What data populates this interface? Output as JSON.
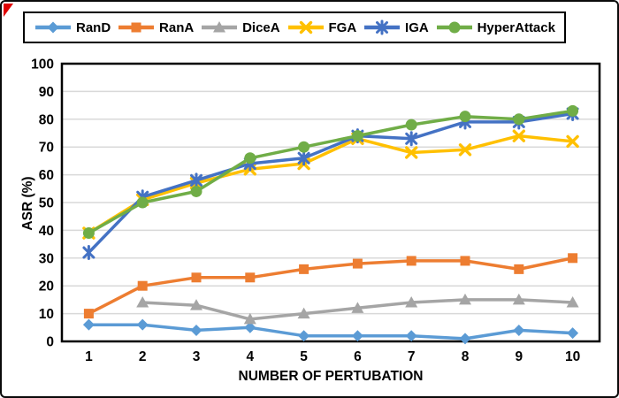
{
  "figure": {
    "corner_marker_color": "#e00000",
    "background_color": "#ffffff",
    "plot_border_color": "#000000",
    "gridline_color": "#d9d9d9"
  },
  "chart_data": {
    "type": "line",
    "title": "",
    "xlabel": "NUMBER OF PERTUBATION",
    "ylabel": "ASR (%)",
    "x_categories": [
      "1",
      "2",
      "3",
      "4",
      "5",
      "6",
      "7",
      "8",
      "9",
      "10"
    ],
    "ylim": [
      0,
      100
    ],
    "ytick_step": 10,
    "ytick_labels": [
      "0",
      "10",
      "20",
      "30",
      "40",
      "50",
      "60",
      "70",
      "80",
      "90",
      "100"
    ],
    "grid": "horizontal",
    "legend_position": "top",
    "series": [
      {
        "name": "RanD",
        "color": "#5b9bd5",
        "marker": "diamond",
        "values": [
          6,
          6,
          4,
          5,
          2,
          2,
          2,
          1,
          4,
          3
        ]
      },
      {
        "name": "RanA",
        "color": "#ed7d31",
        "marker": "square",
        "values": [
          10,
          20,
          23,
          23,
          26,
          28,
          29,
          29,
          26,
          30
        ]
      },
      {
        "name": "DiceA",
        "color": "#a5a5a5",
        "marker": "triangle",
        "values": [
          null,
          14,
          13,
          8,
          10,
          12,
          14,
          15,
          15,
          14
        ]
      },
      {
        "name": "FGA",
        "color": "#ffc000",
        "marker": "x",
        "values": [
          39,
          51,
          57,
          62,
          64,
          73,
          68,
          69,
          74,
          72
        ]
      },
      {
        "name": "IGA",
        "color": "#4472c4",
        "marker": "asterisk",
        "values": [
          32,
          52,
          58,
          64,
          66,
          74,
          73,
          79,
          79,
          82
        ]
      },
      {
        "name": "HyperAttack",
        "color": "#70ad47",
        "marker": "circle",
        "values": [
          39,
          50,
          54,
          66,
          70,
          74,
          78,
          81,
          80,
          83
        ]
      }
    ]
  }
}
